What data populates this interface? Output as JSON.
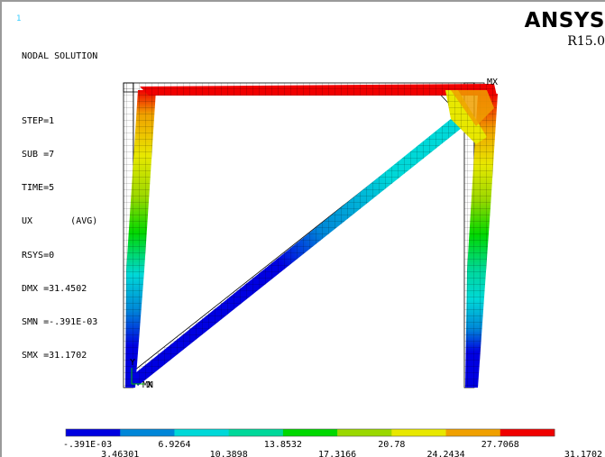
{
  "window_number": "1",
  "info_lines": {
    "solution": "NODAL SOLUTION",
    "step": "STEP=1",
    "sub": "SUB =7",
    "time": "TIME=5",
    "item": "UX       (AVG)",
    "rsys": "RSYS=0",
    "dmx": "DMX =31.4502",
    "smn": "SMN =-.391E-03",
    "smx": "SMX =31.1702"
  },
  "brand": {
    "name": "ANSYS",
    "release": "R15.0"
  },
  "markers": {
    "max": "MX",
    "min": "MN",
    "axis_x": "X",
    "axis_y": "Y"
  },
  "legend": {
    "colors": [
      "#0000e0",
      "#0086d8",
      "#00d8d8",
      "#00d89a",
      "#00d800",
      "#9ad800",
      "#e8e800",
      "#f0a000",
      "#f00000"
    ],
    "labels_upper": [
      "-.391E-03",
      "6.9264",
      "13.8532",
      "20.78",
      "27.7068"
    ],
    "labels_lower": [
      "3.46301",
      "10.3898",
      "17.3166",
      "24.2434",
      "31.1702"
    ]
  },
  "colors": {
    "background": "#ffffff",
    "frame": "#9a9a9a",
    "window_number": "#33ccff",
    "undeformed_edge": "#000000"
  }
}
